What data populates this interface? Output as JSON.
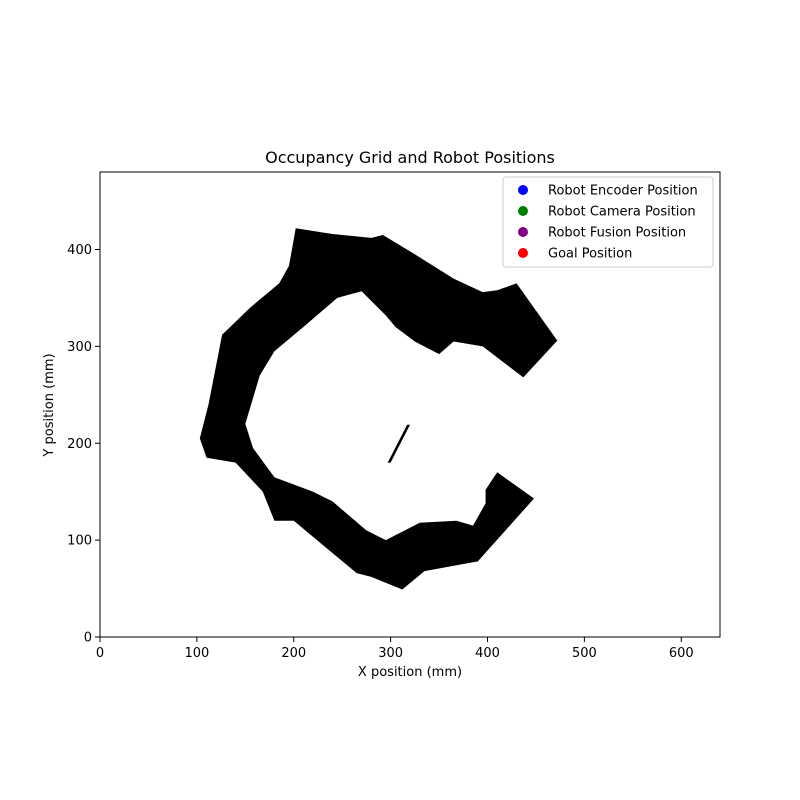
{
  "chart_data": {
    "type": "heatmap",
    "title": "Occupancy Grid and Robot Positions",
    "xlabel": "X position (mm)",
    "ylabel": "Y position (mm)",
    "xlim": [
      0,
      640
    ],
    "ylim": [
      0,
      480
    ],
    "x_ticks": [
      0,
      100,
      200,
      300,
      400,
      500,
      600
    ],
    "y_ticks": [
      0,
      100,
      200,
      300,
      400
    ],
    "grid": false,
    "legend_position": "top-right",
    "occupied_color": "#000000",
    "free_color": "#ffffff",
    "occupied_regions": [
      {
        "name": "c-shaped-wall",
        "points": [
          [
            202,
            422
          ],
          [
            240,
            416
          ],
          [
            280,
            412
          ],
          [
            292,
            415
          ],
          [
            325,
            395
          ],
          [
            365,
            370
          ],
          [
            395,
            356
          ],
          [
            410,
            358
          ],
          [
            430,
            365
          ],
          [
            472,
            306
          ],
          [
            437,
            268
          ],
          [
            395,
            300
          ],
          [
            365,
            305
          ],
          [
            350,
            292
          ],
          [
            325,
            305
          ],
          [
            305,
            320
          ],
          [
            295,
            332
          ],
          [
            270,
            357
          ],
          [
            245,
            350
          ],
          [
            210,
            320
          ],
          [
            180,
            295
          ],
          [
            165,
            270
          ],
          [
            150,
            220
          ],
          [
            158,
            195
          ],
          [
            180,
            165
          ],
          [
            220,
            150
          ],
          [
            240,
            140
          ],
          [
            275,
            110
          ],
          [
            295,
            100
          ],
          [
            330,
            118
          ],
          [
            368,
            120
          ],
          [
            385,
            115
          ],
          [
            398,
            138
          ],
          [
            398,
            152
          ],
          [
            410,
            170
          ],
          [
            448,
            143
          ],
          [
            390,
            78
          ],
          [
            335,
            68
          ],
          [
            312,
            49
          ],
          [
            280,
            62
          ],
          [
            265,
            66
          ],
          [
            230,
            95
          ],
          [
            200,
            120
          ],
          [
            180,
            120
          ],
          [
            168,
            150
          ],
          [
            140,
            180
          ],
          [
            110,
            185
          ],
          [
            103,
            205
          ],
          [
            112,
            240
          ],
          [
            126,
            312
          ],
          [
            155,
            340
          ],
          [
            185,
            365
          ],
          [
            195,
            383
          ],
          [
            199,
            405
          ]
        ]
      },
      {
        "name": "center-obstacle",
        "points": [
          [
            297,
            180
          ],
          [
            300,
            180
          ],
          [
            320,
            219
          ],
          [
            317,
            219
          ]
        ]
      }
    ],
    "series": [
      {
        "name": "Robot Encoder Position",
        "color": "#0000ff",
        "x": [],
        "y": []
      },
      {
        "name": "Robot Camera Position",
        "color": "#008000",
        "x": [],
        "y": []
      },
      {
        "name": "Robot Fusion Position",
        "color": "#800080",
        "x": [],
        "y": []
      },
      {
        "name": "Goal Position",
        "color": "#ff0000",
        "x": [],
        "y": []
      }
    ]
  }
}
